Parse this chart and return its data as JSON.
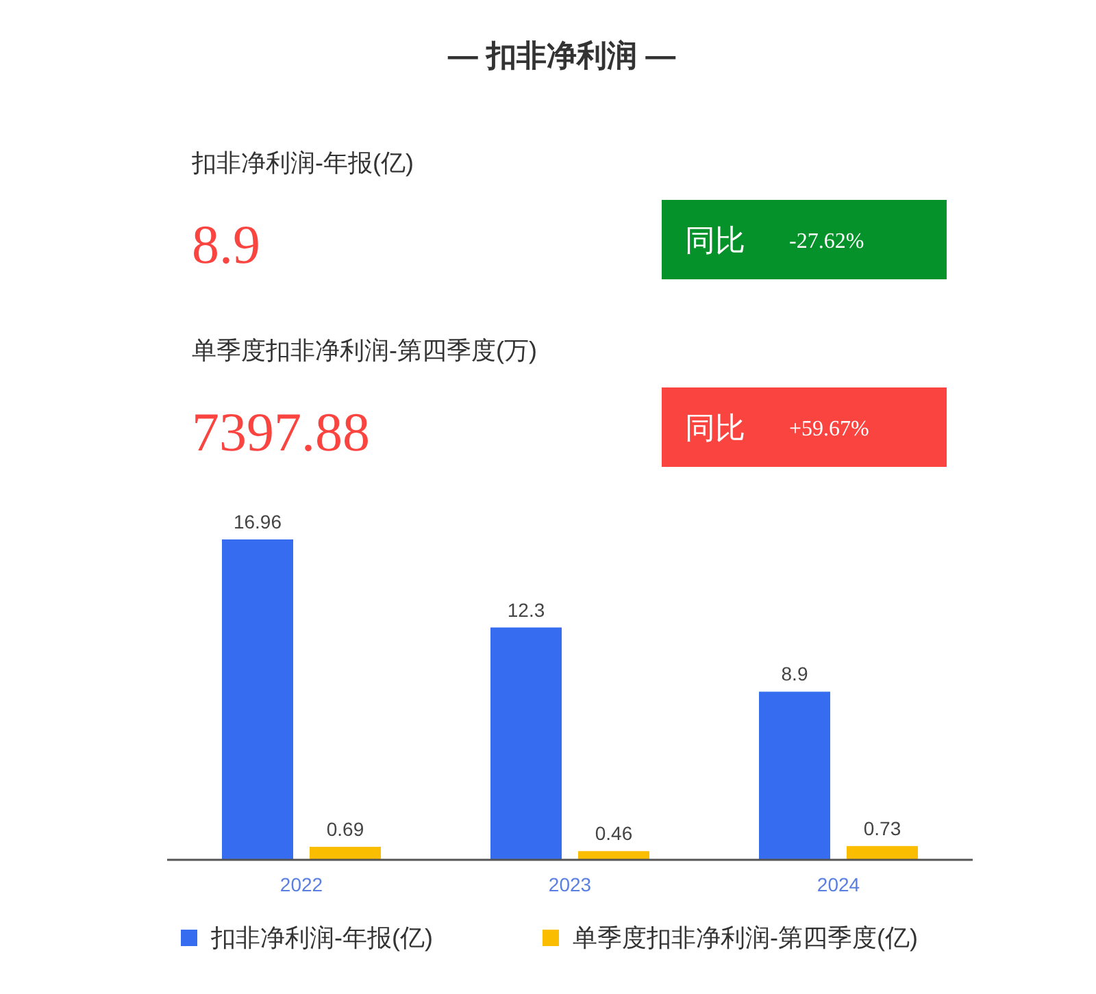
{
  "chart_data": [
    {
      "type": "other",
      "title": "— 扣非净利润 —",
      "annotations": [
        "扣非净利润-年报(亿)",
        "8.9",
        "同比",
        "-27.62%",
        "单季度扣非净利润-第四季度(万)",
        "7397.88",
        "同比",
        "+59.67%"
      ]
    },
    {
      "type": "bar",
      "categories": [
        "2022",
        "2023",
        "2024"
      ],
      "series": [
        {
          "name": "扣非净利润-年报(亿)",
          "color": "#356cf0",
          "values": [
            16.96,
            12.3,
            8.9
          ]
        },
        {
          "name": "单季度扣非净利润-第四季度(亿)",
          "color": "#fbbd00",
          "values": [
            0.69,
            0.46,
            0.73
          ]
        }
      ],
      "data_labels": true,
      "legend": "bottom"
    }
  ]
}
